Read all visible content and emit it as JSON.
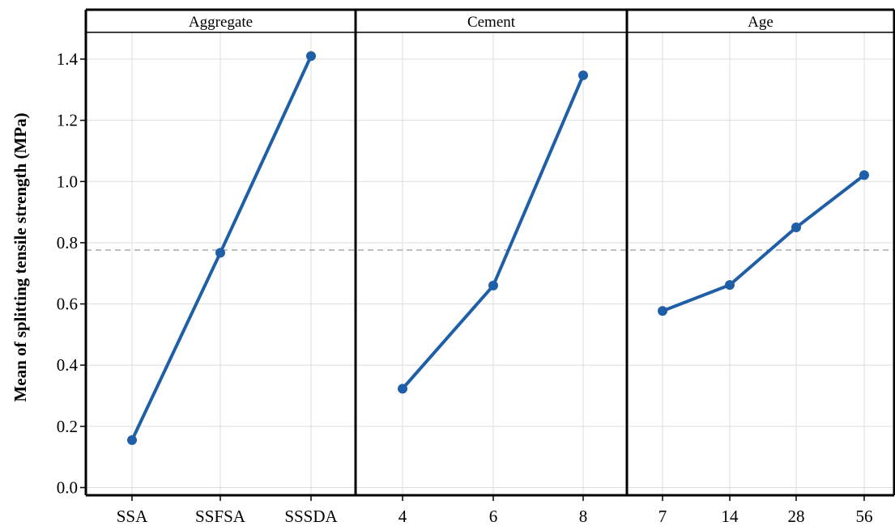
{
  "chart_data": {
    "type": "line",
    "ylabel": "Mean of splitting tensile strength (MPa)",
    "ylim": [
      0,
      1.5
    ],
    "yticks": [
      "0.0",
      "0.2",
      "0.4",
      "0.6",
      "0.8",
      "1.0",
      "1.2",
      "1.4"
    ],
    "reference_line": 0.776,
    "grid": true,
    "colors": {
      "series": "#1f5fa8",
      "reference": "#999999",
      "grid": "#dddddd"
    },
    "panels": [
      {
        "title": "Aggregate",
        "categories": [
          "SSA",
          "SSFSA",
          "SSSDA"
        ],
        "values": [
          0.155,
          0.767,
          1.41
        ]
      },
      {
        "title": "Cement",
        "categories": [
          "4",
          "6",
          "8"
        ],
        "values": [
          0.323,
          0.66,
          1.347
        ]
      },
      {
        "title": "Age",
        "categories": [
          "7",
          "14",
          "28",
          "56"
        ],
        "values": [
          0.577,
          0.662,
          0.85,
          1.021
        ]
      }
    ]
  }
}
